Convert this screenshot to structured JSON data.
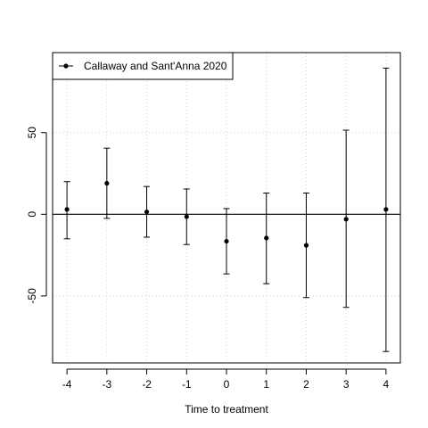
{
  "chart_data": {
    "type": "scatter",
    "xlabel": "Time to treatment",
    "ylabel": "",
    "xlim": [
      -4.36,
      4.36
    ],
    "ylim": [
      -91,
      99
    ],
    "xticks": [
      -4,
      -3,
      -2,
      -1,
      0,
      1,
      2,
      3,
      4
    ],
    "xtick_labels": [
      "-4",
      "-3",
      "-2",
      "-1",
      "0",
      "1",
      "2",
      "3",
      "4"
    ],
    "yticks": [
      -50,
      0,
      50
    ],
    "ytick_labels": [
      "-50",
      "0",
      "50"
    ],
    "grid": true,
    "reference_line_y": 0,
    "legend_position": "top-left",
    "series": [
      {
        "name": "Callaway and Sant'Anna 2020",
        "color": "#000000",
        "x": [
          -4,
          -3,
          -2,
          -1,
          0,
          1,
          2,
          3,
          4
        ],
        "y": [
          3,
          19,
          1.5,
          -1.5,
          -16.5,
          -14.5,
          -19,
          -3,
          3
        ],
        "lower": [
          -15,
          -2.5,
          -14,
          -18.5,
          -36.5,
          -42.5,
          -51,
          -57,
          -84
        ],
        "upper": [
          20,
          40.5,
          17,
          15.5,
          3.5,
          13,
          13,
          51.5,
          89.5
        ]
      }
    ]
  }
}
